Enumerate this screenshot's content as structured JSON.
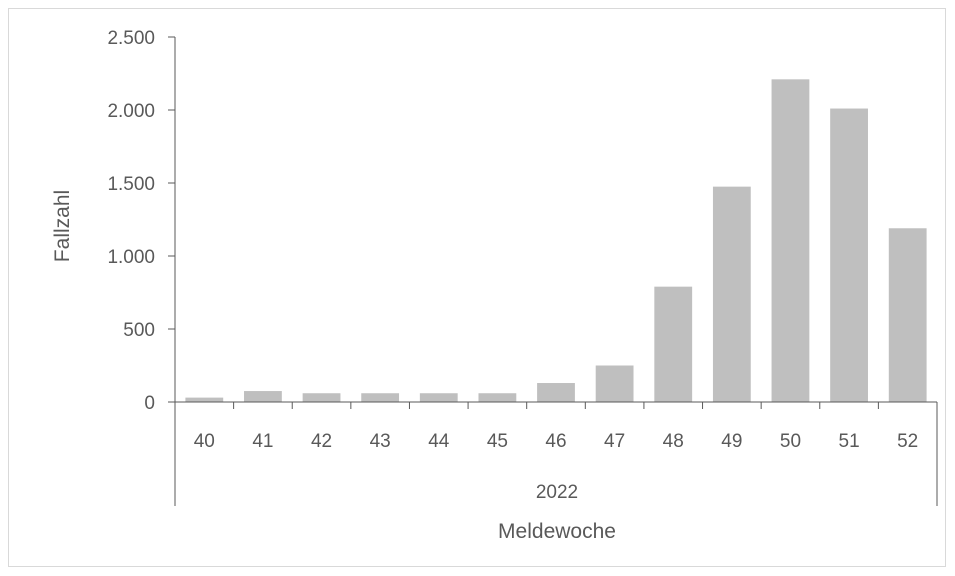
{
  "chart_data": {
    "type": "bar",
    "categories": [
      "40",
      "41",
      "42",
      "43",
      "44",
      "45",
      "46",
      "47",
      "48",
      "49",
      "50",
      "51",
      "52"
    ],
    "values": [
      30,
      75,
      60,
      60,
      60,
      60,
      130,
      250,
      790,
      1475,
      2210,
      2010,
      1190
    ],
    "group_label": "2022",
    "xlabel": "Meldewoche",
    "ylabel": "Fallzahl",
    "ylim": [
      0,
      2500
    ],
    "yticks": [
      0,
      500,
      1000,
      1500,
      2000,
      2500
    ],
    "ytick_labels": [
      "0",
      "500",
      "1.000",
      "1.500",
      "2.000",
      "2.500"
    ],
    "bar_color": "#bfbfbf",
    "axis_color": "#595959",
    "grid": false,
    "legend": "none"
  }
}
